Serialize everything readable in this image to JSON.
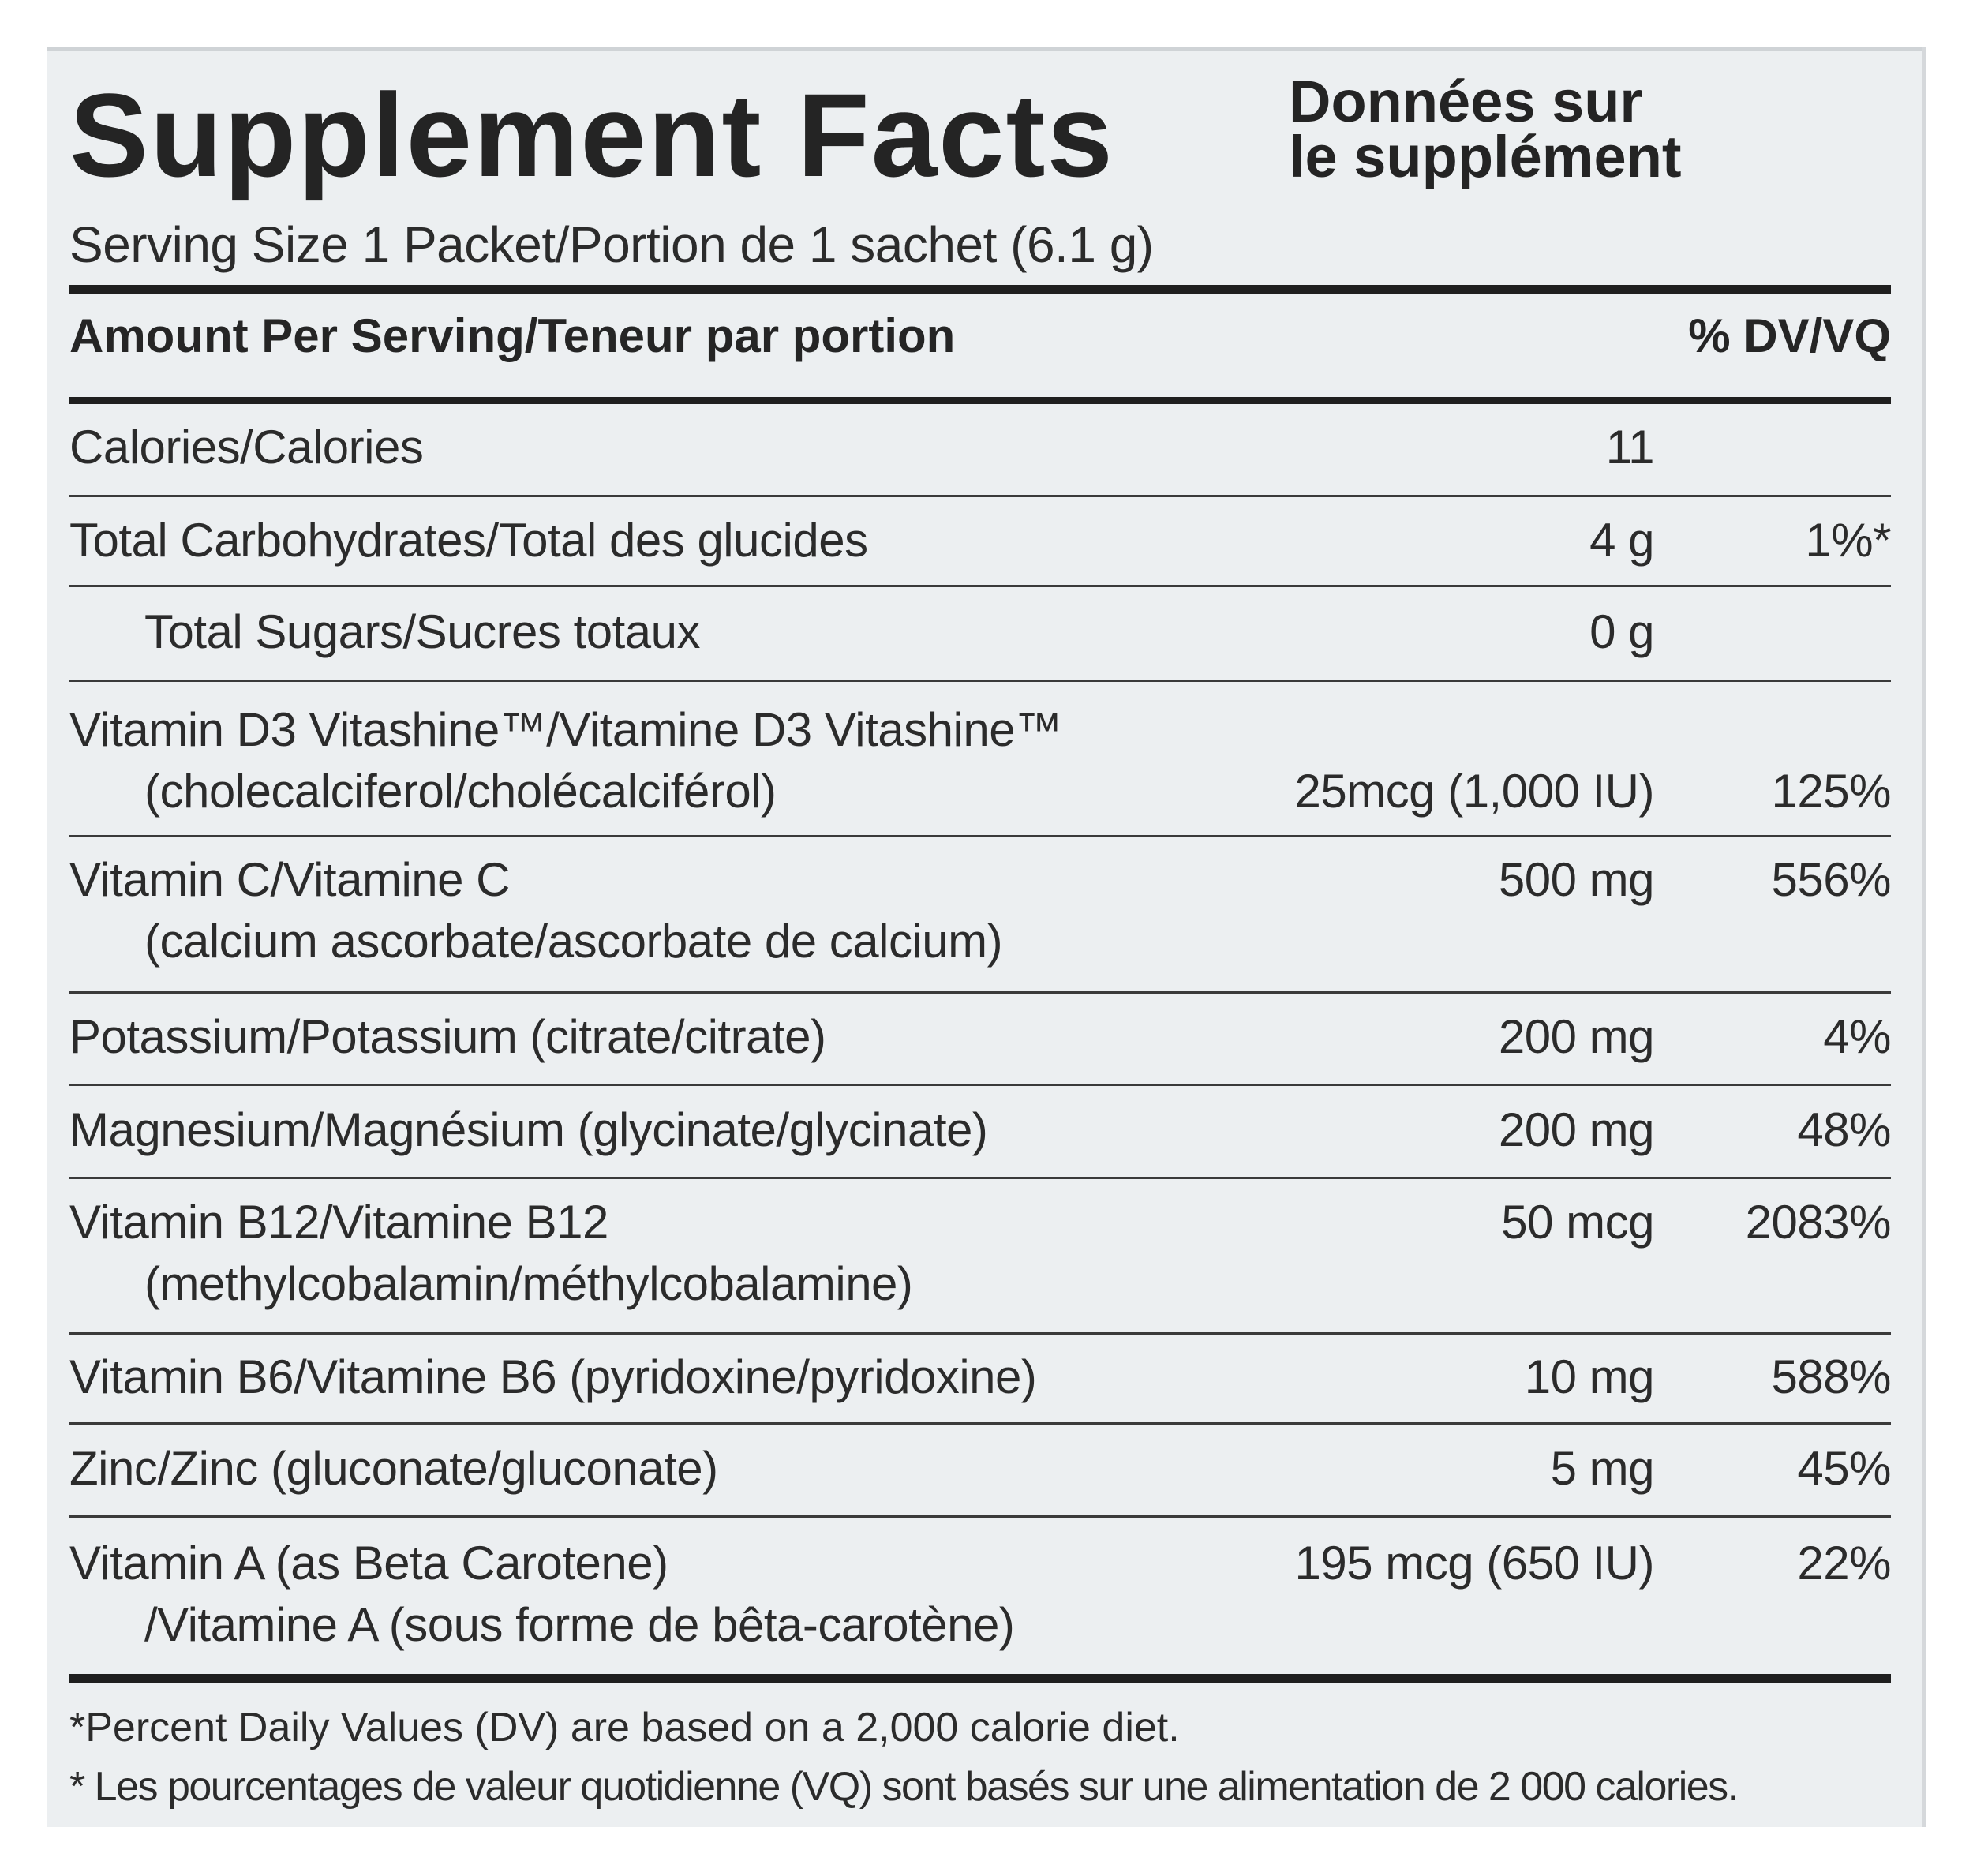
{
  "title": {
    "english": "Supplement Facts",
    "french_line1": "Données sur",
    "french_line2": "le supplément"
  },
  "serving_size": "Serving Size 1 Packet/Portion de 1 sachet (6.1 g)",
  "header": {
    "left": "Amount Per Serving/Teneur par portion",
    "right": "% DV/VQ"
  },
  "rows": [
    {
      "name": "Calories/Calories",
      "amount": "11",
      "dv": ""
    },
    {
      "name": "Total Carbohydrates/Total des glucides",
      "amount": "4 g",
      "dv": "1%*"
    },
    {
      "name": "Total Sugars/Sucres totaux",
      "amount": "0 g",
      "dv": ""
    },
    {
      "name": "Vitamin D3 Vitashine™/Vitamine D3 Vitashine™",
      "subname": "(cholecalciferol/cholécalciférol)",
      "amount": "25mcg (1,000 IU)",
      "dv": "125%"
    },
    {
      "name": "Vitamin C/Vitamine C",
      "subname": "(calcium ascorbate/ascorbate de calcium)",
      "amount": "500 mg",
      "dv": "556%"
    },
    {
      "name": "Potassium/Potassium (citrate/citrate)",
      "amount": "200 mg",
      "dv": "4%"
    },
    {
      "name": "Magnesium/Magnésium (glycinate/glycinate)",
      "amount": "200 mg",
      "dv": "48%"
    },
    {
      "name": "Vitamin B12/Vitamine B12",
      "subname": "(methylcobalamin/méthylcobalamine)",
      "amount": "50 mcg",
      "dv": "2083%"
    },
    {
      "name": "Vitamin B6/Vitamine B6 (pyridoxine/pyridoxine)",
      "amount": "10 mg",
      "dv": "588%"
    },
    {
      "name": "Zinc/Zinc (gluconate/gluconate)",
      "amount": "5 mg",
      "dv": "45%"
    },
    {
      "name": "Vitamin A (as Beta Carotene)",
      "subname": "/Vitamine A (sous forme de bêta-carotène)",
      "amount": "195 mcg (650 IU)",
      "dv": "22%"
    }
  ],
  "footnotes": {
    "english": "*Percent Daily Values (DV) are based on a 2,000 calorie diet.",
    "french": "* Les pourcentages de valeur quotidienne (VQ) sont basés sur une alimentation de 2 000 calories."
  }
}
